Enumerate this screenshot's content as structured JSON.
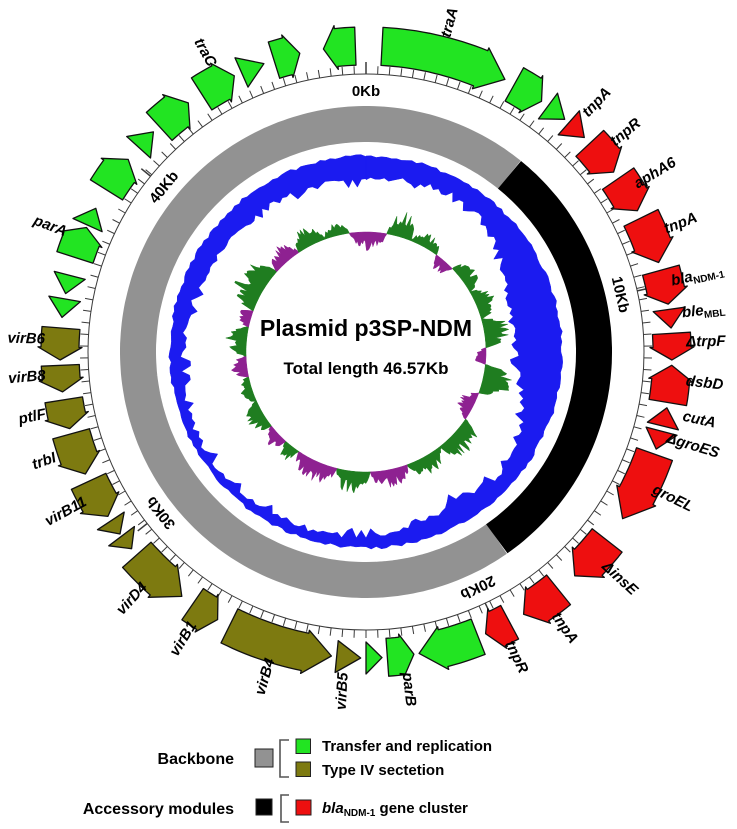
{
  "figure": {
    "title": "Plasmid p3SP-NDM",
    "subtitle": "Total length 46.57Kb"
  },
  "colors": {
    "transfer_green": "#22E422",
    "secretion_olive": "#7D7A10",
    "ndm_red": "#EE0F0F",
    "backbone_gray": "#929292",
    "accessory_black": "#000000",
    "gc_content_blue": "#1B1BF0",
    "skew_green": "#1F7D20",
    "skew_purple": "#8E2191",
    "outline": "#111111",
    "scale_stroke": "#3A3A3A",
    "bracket": "#555555"
  },
  "legend": {
    "backbone_label": "Backbone",
    "accessory_label": "Accessory modules",
    "transfer_label": "Transfer and replication",
    "secretion_label": "Type IV sectetion",
    "ndm_italic": "bla",
    "ndm_sub": "NDM-1",
    "ndm_rest": " gene cluster"
  },
  "chart_data": {
    "type": "circular-genome-map",
    "plasmid": "p3SP-NDM",
    "total_length_kb": 46.57,
    "noise_seed": 11,
    "scale_ticks_kb": [
      {
        "kb": 0,
        "label": "0Kb"
      },
      {
        "kb": 10,
        "label": "10Kb"
      },
      {
        "kb": 20,
        "label": "20Kb"
      },
      {
        "kb": 30,
        "label": "30Kb"
      },
      {
        "kb": 40,
        "label": "40Kb"
      }
    ],
    "backbone_segments": [
      {
        "name": "backbone",
        "color_key": "backbone_gray",
        "a0": 145,
        "a1": 399
      },
      {
        "name": "accessory-modules",
        "color_key": "accessory_black",
        "a0": 39,
        "a1": 145
      }
    ],
    "genes": [
      {
        "name": "traA",
        "color": "transfer",
        "strand": "+",
        "a0": 3,
        "a1": 27
      },
      {
        "name": "",
        "color": "transfer",
        "strand": "+",
        "a0": 29,
        "a1": 35
      },
      {
        "name": "",
        "color": "transfer",
        "strand": "+",
        "a0": 36.5,
        "a1": 40.5
      },
      {
        "name": "tnpA",
        "color": "ndm",
        "strand": "+",
        "a0": 41.5,
        "a1": 45.5
      },
      {
        "name": "tnpR",
        "color": "ndm",
        "strand": "+",
        "a0": 47,
        "a1": 54
      },
      {
        "name": "aphA6",
        "color": "ndm",
        "strand": "+",
        "a0": 55.5,
        "a1": 62.5
      },
      {
        "name": "tnpA",
        "color": "ndm",
        "strand": "+",
        "a0": 64,
        "a1": 73
      },
      {
        "name": "bla",
        "sub": "NDM-1",
        "color": "ndm",
        "strand": "+",
        "a0": 74.5,
        "a1": 81
      },
      {
        "name": "ble",
        "sub": "MBL",
        "color": "ndm",
        "strand": "+",
        "a0": 82,
        "a1": 85.5
      },
      {
        "name": "ΔtrpF",
        "color": "ndm",
        "strand": "+",
        "a0": 86.5,
        "a1": 91.5
      },
      {
        "name": "dsbD",
        "color": "ndm",
        "strand": "-",
        "a0": 92.5,
        "a1": 99.5
      },
      {
        "name": "cutA",
        "color": "ndm",
        "strand": "-",
        "a0": 100.5,
        "a1": 104
      },
      {
        "name": "ΔgroES",
        "color": "ndm",
        "strand": "+",
        "a0": 105,
        "a1": 108.5
      },
      {
        "name": "groEL",
        "color": "ndm",
        "strand": "+",
        "a0": 109.5,
        "a1": 123
      },
      {
        "name": "ΔinsE",
        "color": "ndm",
        "strand": "+",
        "a0": 128,
        "a1": 137
      },
      {
        "name": "tnpA",
        "color": "ndm",
        "strand": "+",
        "a0": 141,
        "a1": 149
      },
      {
        "name": "tnpR",
        "color": "ndm",
        "strand": "+",
        "a0": 152,
        "a1": 157
      },
      {
        "name": "",
        "color": "transfer",
        "strand": "+",
        "a0": 158.5,
        "a1": 170
      },
      {
        "name": "parB",
        "color": "transfer",
        "strand": "-",
        "a0": 171,
        "a1": 176
      },
      {
        "name": "",
        "color": "transfer",
        "strand": "-",
        "a0": 177,
        "a1": 180
      },
      {
        "name": "virB5",
        "color": "secretion",
        "strand": "-",
        "a0": 181,
        "a1": 185.5
      },
      {
        "name": "virB4",
        "color": "secretion",
        "strand": "-",
        "a0": 186.5,
        "a1": 206.5
      },
      {
        "name": "virB1",
        "color": "secretion",
        "strand": "-",
        "a0": 209,
        "a1": 214.5
      },
      {
        "name": "virD4",
        "color": "secretion",
        "strand": "-",
        "a0": 217,
        "a1": 228.5
      },
      {
        "name": "",
        "color": "secretion",
        "strand": "-",
        "a0": 230,
        "a1": 233
      },
      {
        "name": "",
        "color": "secretion",
        "strand": "-",
        "a0": 233.5,
        "a1": 236.5
      },
      {
        "name": "virB11",
        "color": "secretion",
        "strand": "-",
        "a0": 237.5,
        "a1": 245
      },
      {
        "name": "trbI",
        "color": "secretion",
        "strand": "-",
        "a0": 246.5,
        "a1": 254.5
      },
      {
        "name": "ptlF",
        "color": "secretion",
        "strand": "-",
        "a0": 255.5,
        "a1": 261
      },
      {
        "name": "virB8",
        "color": "secretion",
        "strand": "-",
        "a0": 262.5,
        "a1": 267.5
      },
      {
        "name": "virB6",
        "color": "secretion",
        "strand": "-",
        "a0": 268.5,
        "a1": 274.5
      },
      {
        "name": "",
        "color": "transfer",
        "strand": "-",
        "a0": 276.5,
        "a1": 280
      },
      {
        "name": "",
        "color": "transfer",
        "strand": "-",
        "a0": 281,
        "a1": 284.5
      },
      {
        "name": "parA",
        "color": "transfer",
        "strand": "+",
        "a0": 288,
        "a1": 294
      },
      {
        "name": "",
        "color": "transfer",
        "strand": "+",
        "a0": 294.5,
        "a1": 298
      },
      {
        "name": "",
        "color": "transfer",
        "strand": "+",
        "a0": 302,
        "a1": 309
      },
      {
        "name": "",
        "color": "transfer",
        "strand": "+",
        "a0": 312,
        "a1": 316
      },
      {
        "name": "",
        "color": "transfer",
        "strand": "+",
        "a0": 317.5,
        "a1": 324.5
      },
      {
        "name": "traC",
        "color": "transfer",
        "strand": "+",
        "a0": 327.5,
        "a1": 334.5
      },
      {
        "name": "",
        "color": "transfer",
        "strand": "+",
        "a0": 336,
        "a1": 340.5
      },
      {
        "name": "",
        "color": "transfer",
        "strand": "+",
        "a0": 342.5,
        "a1": 347.5
      },
      {
        "name": "",
        "color": "transfer",
        "strand": "-",
        "a0": 352,
        "a1": 358
      }
    ],
    "gc_content_inner_points": [
      [
        0,
        172
      ],
      [
        10,
        175
      ],
      [
        20,
        178
      ],
      [
        30,
        179
      ],
      [
        40,
        178
      ],
      [
        50,
        170
      ],
      [
        60,
        158
      ],
      [
        70,
        152
      ],
      [
        80,
        150
      ],
      [
        90,
        150
      ],
      [
        100,
        156
      ],
      [
        110,
        166
      ],
      [
        120,
        176
      ],
      [
        130,
        182
      ],
      [
        140,
        178
      ],
      [
        150,
        172
      ],
      [
        160,
        179
      ],
      [
        170,
        183
      ],
      [
        180,
        184
      ],
      [
        190,
        185
      ],
      [
        200,
        186
      ],
      [
        210,
        187
      ],
      [
        220,
        188
      ],
      [
        230,
        188
      ],
      [
        240,
        188
      ],
      [
        250,
        187
      ],
      [
        260,
        185
      ],
      [
        270,
        183
      ],
      [
        280,
        181
      ],
      [
        290,
        179
      ],
      [
        300,
        177
      ],
      [
        310,
        176
      ],
      [
        320,
        175
      ],
      [
        330,
        174
      ],
      [
        340,
        173
      ],
      [
        350,
        172
      ],
      [
        360,
        172
      ]
    ],
    "gc_content_outer_r": 196,
    "gc_skew_baseline_r": 120,
    "gc_skew_segments": [
      {
        "a0": 352,
        "a1": 370,
        "color": "purple",
        "dir": "in",
        "h": 18
      },
      {
        "a0": 10,
        "a1": 22,
        "color": "green",
        "dir": "out",
        "h": 26
      },
      {
        "a0": 22,
        "a1": 36,
        "color": "green",
        "dir": "out",
        "h": 14
      },
      {
        "a0": 36,
        "a1": 46,
        "color": "purple",
        "dir": "in",
        "h": 14
      },
      {
        "a0": 46,
        "a1": 60,
        "color": "green",
        "dir": "out",
        "h": 16
      },
      {
        "a0": 60,
        "a1": 74,
        "color": "green",
        "dir": "out",
        "h": 20
      },
      {
        "a0": 74,
        "a1": 88,
        "color": "green",
        "dir": "out",
        "h": 26
      },
      {
        "a0": 88,
        "a1": 96,
        "color": "purple",
        "dir": "in",
        "h": 12
      },
      {
        "a0": 96,
        "a1": 110,
        "color": "green",
        "dir": "out",
        "h": 30
      },
      {
        "a0": 110,
        "a1": 124,
        "color": "purple",
        "dir": "in",
        "h": 16
      },
      {
        "a0": 124,
        "a1": 142,
        "color": "green",
        "dir": "out",
        "h": 26
      },
      {
        "a0": 142,
        "a1": 160,
        "color": "green",
        "dir": "out",
        "h": 18
      },
      {
        "a0": 160,
        "a1": 178,
        "color": "purple",
        "dir": "out",
        "h": 18
      },
      {
        "a0": 178,
        "a1": 194,
        "color": "green",
        "dir": "out",
        "h": 22
      },
      {
        "a0": 194,
        "a1": 214,
        "color": "purple",
        "dir": "out",
        "h": 20
      },
      {
        "a0": 214,
        "a1": 222,
        "color": "green",
        "dir": "out",
        "h": 14
      },
      {
        "a0": 222,
        "a1": 232,
        "color": "purple",
        "dir": "out",
        "h": 14
      },
      {
        "a0": 232,
        "a1": 246,
        "color": "green",
        "dir": "out",
        "h": 18
      },
      {
        "a0": 246,
        "a1": 258,
        "color": "green",
        "dir": "out",
        "h": 12
      },
      {
        "a0": 258,
        "a1": 268,
        "color": "purple",
        "dir": "out",
        "h": 16
      },
      {
        "a0": 268,
        "a1": 282,
        "color": "green",
        "dir": "out",
        "h": 20
      },
      {
        "a0": 282,
        "a1": 290,
        "color": "purple",
        "dir": "out",
        "h": 14
      },
      {
        "a0": 290,
        "a1": 312,
        "color": "green",
        "dir": "out",
        "h": 30
      },
      {
        "a0": 312,
        "a1": 326,
        "color": "purple",
        "dir": "out",
        "h": 18
      },
      {
        "a0": 326,
        "a1": 340,
        "color": "green",
        "dir": "out",
        "h": 20
      },
      {
        "a0": 340,
        "a1": 352,
        "color": "green",
        "dir": "out",
        "h": 12
      }
    ]
  }
}
